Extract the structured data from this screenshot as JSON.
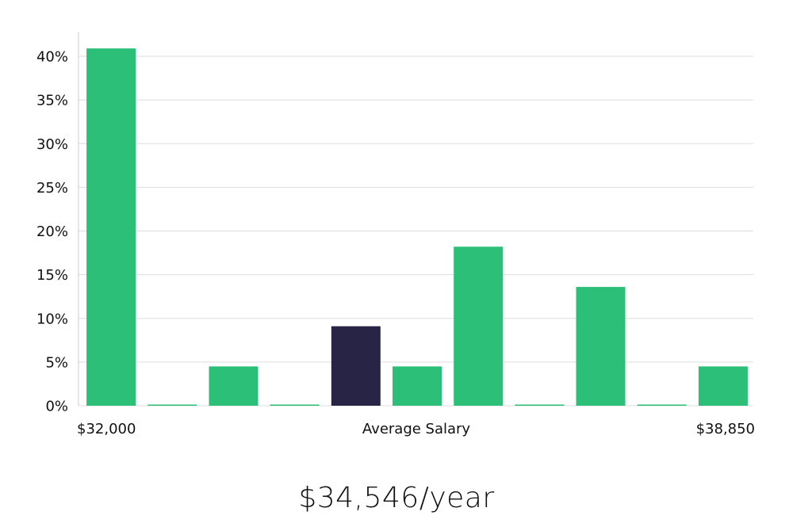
{
  "chart_data": {
    "type": "bar",
    "categories": [
      "1",
      "2",
      "3",
      "4",
      "5",
      "6",
      "7",
      "8",
      "9",
      "10",
      "11"
    ],
    "values": [
      40.9,
      0,
      4.5,
      0,
      9.1,
      4.5,
      18.2,
      0,
      13.6,
      0,
      4.5
    ],
    "highlight_index": 4,
    "ylim": [
      0,
      40
    ],
    "y_ticks": [
      0,
      5,
      10,
      15,
      20,
      25,
      30,
      35,
      40
    ],
    "y_tick_format": "percent",
    "x_labels": {
      "left": "$32,000",
      "center": "Average Salary",
      "right": "$38,850"
    },
    "grid": true,
    "legend": "none"
  },
  "colors": {
    "bar": "#2bbf77",
    "highlight_bar": "#272446",
    "grid": "#dddddd",
    "axis": "#cccccc"
  },
  "salary_display": "$34,546/year"
}
